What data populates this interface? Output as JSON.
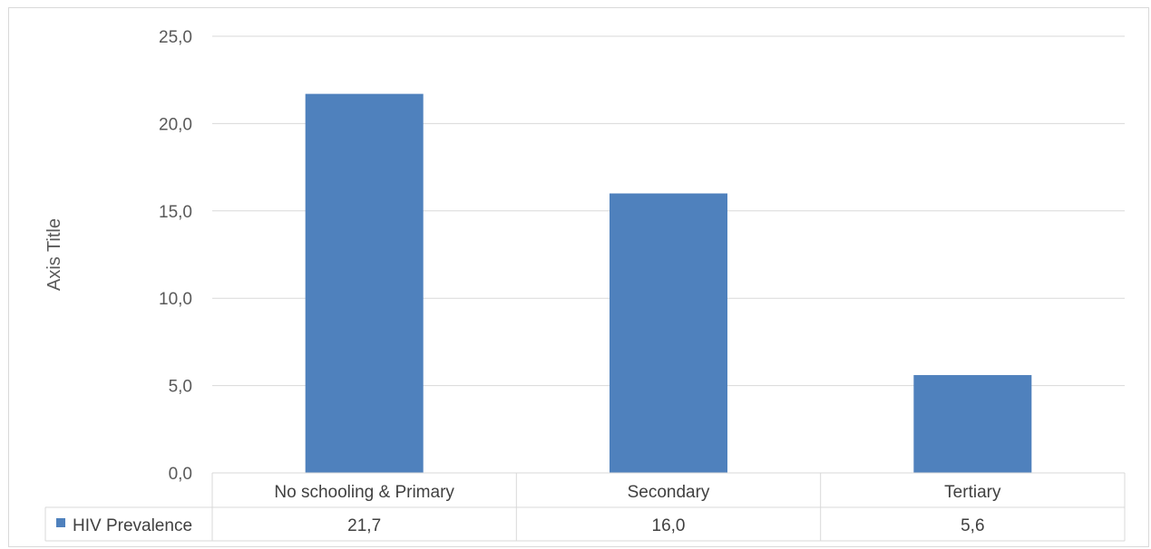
{
  "chart_data": {
    "type": "bar",
    "categories": [
      "No schooling & Primary",
      "Secondary",
      "Tertiary"
    ],
    "series": [
      {
        "name": "HIV Prevalence",
        "values": [
          21.7,
          16.0,
          5.6
        ],
        "value_labels": [
          "21,7",
          "16,0",
          "5,6"
        ]
      }
    ],
    "ylabel": "Axis Title",
    "ylim": [
      0,
      25
    ],
    "yticks": [
      "0,0",
      "5,0",
      "10,0",
      "15,0",
      "20,0",
      "25,0"
    ],
    "grid": true,
    "legend": "data-table",
    "color": "#4f81bd"
  }
}
